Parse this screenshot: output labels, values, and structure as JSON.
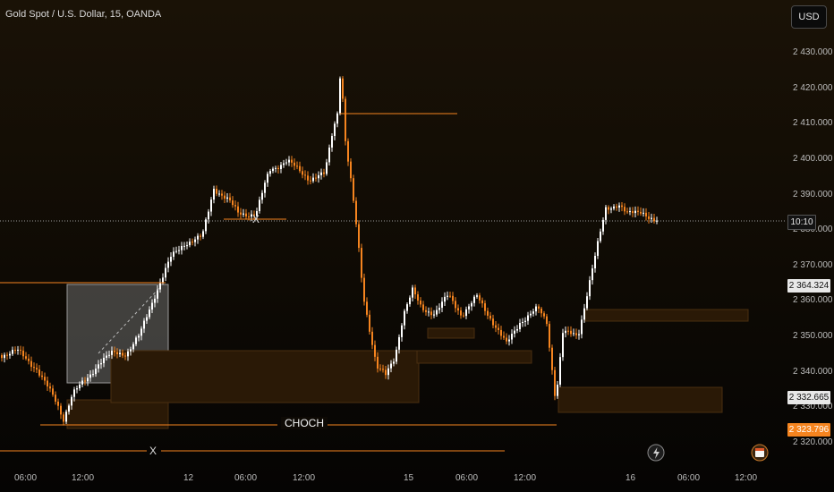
{
  "header": {
    "title": "Gold Spot / U.S. Dollar, 15, OANDA",
    "currency_button": "USD"
  },
  "price_axis": {
    "labels": [
      "2 430.000",
      "2 420.000",
      "2 410.000",
      "2 400.000",
      "2 390.000",
      "2 380.000",
      "2 370.000",
      "2 360.000",
      "2 350.000",
      "2 340.000",
      "2 330.000",
      "2 320.000"
    ]
  },
  "price_tags": {
    "countdown": "10:10",
    "level_a": "2 364.324",
    "level_b": "2 332.665",
    "last_price": "2 323.796"
  },
  "time_axis": {
    "labels": [
      "06:00",
      "12:00",
      "12",
      "06:00",
      "12:00",
      "15",
      "06:00",
      "12:00",
      "16",
      "06:00",
      "12:00"
    ]
  },
  "annotations": {
    "choch": "CHOCH",
    "x_top": "X",
    "x_bottom": "X"
  },
  "colors": {
    "bg": "#000000",
    "accent": "#f5841f",
    "zone_fill": "#2a1906",
    "zone_border": "#4a2e10",
    "candle_up": "#ffffff",
    "candle_down": "#f5841f"
  },
  "icons": {
    "flash": "lightning-icon",
    "calendar": "calendar-event-icon"
  }
}
